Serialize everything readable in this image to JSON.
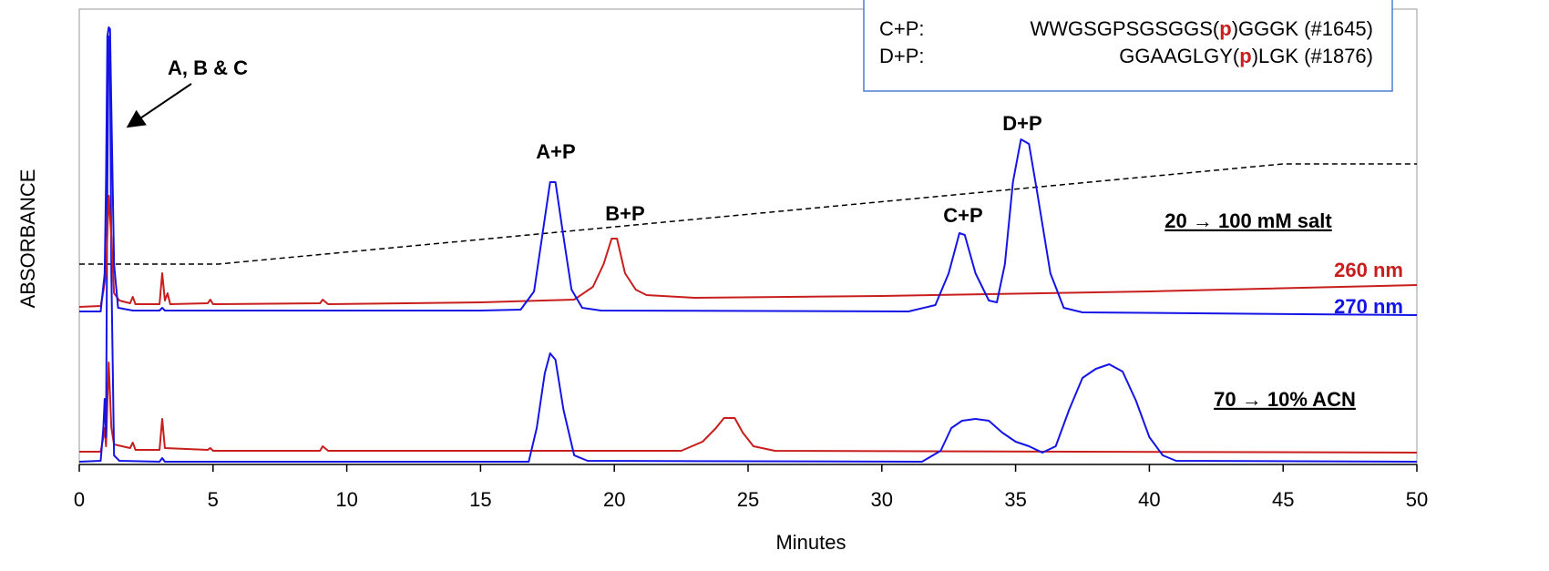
{
  "chart_data": {
    "type": "line",
    "xlabel": "Minutes",
    "ylabel": "ABSORBANCE",
    "xlim": [
      0,
      50
    ],
    "xticks": [
      0,
      5,
      10,
      15,
      20,
      25,
      30,
      35,
      40,
      45,
      50
    ],
    "ylim": [
      0,
      100
    ],
    "series": [
      {
        "name": "260 nm",
        "color": "#c81e1e",
        "x": [
          0,
          0.8,
          0.9,
          1.0,
          1.1,
          1.2,
          1.3,
          1.5,
          1.9,
          2.0,
          2.1,
          3.0,
          3.1,
          3.2,
          3.3,
          3.4,
          4.8,
          4.9,
          5.0,
          9.0,
          9.1,
          9.3,
          15,
          18.5,
          19.2,
          19.6,
          19.9,
          20.1,
          20.4,
          20.8,
          21.2,
          23,
          30,
          40,
          50
        ],
        "values": [
          34.6,
          34.8,
          38,
          42,
          59,
          50,
          37.6,
          36,
          35.4,
          36.8,
          35.2,
          35.2,
          42,
          36,
          37.6,
          35.2,
          35.4,
          36.2,
          35.2,
          35.4,
          36.2,
          35.2,
          35.6,
          36.2,
          39,
          44,
          49.6,
          49.6,
          42,
          38.4,
          37.2,
          36.6,
          37,
          38,
          39.4
        ]
      },
      {
        "name": "270 nm",
        "color": "#1414e6",
        "x": [
          0,
          0.8,
          0.95,
          1.0,
          1.05,
          1.1,
          1.15,
          1.2,
          1.3,
          1.45,
          2.0,
          3.0,
          3.1,
          3.2,
          15,
          16.5,
          17.0,
          17.3,
          17.6,
          17.8,
          18.1,
          18.4,
          18.8,
          19.5,
          31,
          32.0,
          32.5,
          32.9,
          33.1,
          33.5,
          34.0,
          34.3,
          34.6,
          34.9,
          35.2,
          35.5,
          35.8,
          36.3,
          36.8,
          37.5,
          50
        ],
        "values": [
          33.6,
          33.6,
          42,
          62,
          94,
          96,
          95.6,
          78,
          44,
          34.4,
          33.8,
          33.8,
          34.4,
          33.8,
          33.8,
          34,
          38,
          50,
          62,
          62,
          50,
          38.4,
          34.4,
          33.8,
          33.6,
          35,
          42,
          50.8,
          50.4,
          42,
          36,
          35.6,
          44,
          62,
          71.4,
          70.4,
          60,
          42,
          34.4,
          33.4,
          32.8
        ]
      },
      {
        "color": "#c81e1e",
        "x": [
          0,
          0.8,
          0.9,
          0.95,
          1.0,
          1.1,
          1.2,
          1.3,
          1.9,
          2.0,
          2.1,
          3.0,
          3.1,
          3.2,
          4.8,
          4.9,
          5.0,
          9.0,
          9.1,
          9.3,
          22.5,
          23.3,
          23.8,
          24.1,
          24.5,
          24.8,
          25.2,
          26,
          50
        ],
        "values": [
          2.8,
          2.8,
          6,
          8,
          4,
          22.4,
          8,
          4.4,
          3.6,
          4.8,
          3.2,
          3.2,
          10,
          3.6,
          3.2,
          3.6,
          3,
          3,
          4,
          3,
          3,
          5,
          8,
          10.2,
          10.2,
          7,
          4,
          3,
          2.6
        ]
      },
      {
        "color": "#1414e6",
        "x": [
          0,
          0.8,
          0.9,
          0.95,
          1.0,
          1.05,
          1.1,
          1.15,
          1.2,
          1.3,
          1.5,
          3.0,
          3.1,
          3.2,
          16.8,
          17.1,
          17.4,
          17.6,
          17.8,
          18.1,
          18.5,
          19,
          31.5,
          32.2,
          32.6,
          33.0,
          33.5,
          34.0,
          34.5,
          35.0,
          35.5,
          36.0,
          36.5,
          37.0,
          37.5,
          38.0,
          38.5,
          39.0,
          39.5,
          40.0,
          40.5,
          41.0,
          50
        ],
        "values": [
          0.6,
          0.8,
          8,
          14.4,
          6,
          62,
          94,
          90,
          42,
          2,
          0.8,
          0.6,
          1.4,
          0.6,
          0.6,
          8,
          20,
          24.4,
          23,
          12,
          2,
          0.8,
          0.6,
          3,
          8,
          9.6,
          10,
          9.6,
          7,
          5,
          4,
          2.6,
          4,
          12,
          19,
          21,
          22,
          20.4,
          14,
          6,
          2,
          0.8,
          0.6
        ]
      },
      {
        "color": "#000000",
        "dashed": true,
        "x": [
          0,
          5.2,
          45,
          50
        ],
        "values": [
          44,
          44,
          66,
          66
        ]
      }
    ],
    "annotations": [
      "A, B & C",
      "A+P",
      "B+P",
      "C+P",
      "D+P",
      "20 → 100 mM salt",
      "70 → 10% ACN"
    ],
    "inset": [
      {
        "label": "C+P:",
        "before": "WWGSGPSGSGGS(",
        "mark": "p",
        "after": ")GGGK (#1645)"
      },
      {
        "label": "D+P:",
        "before": "GGAAGLGY(",
        "mark": "p",
        "after": ")LGK (#1876)"
      }
    ]
  }
}
